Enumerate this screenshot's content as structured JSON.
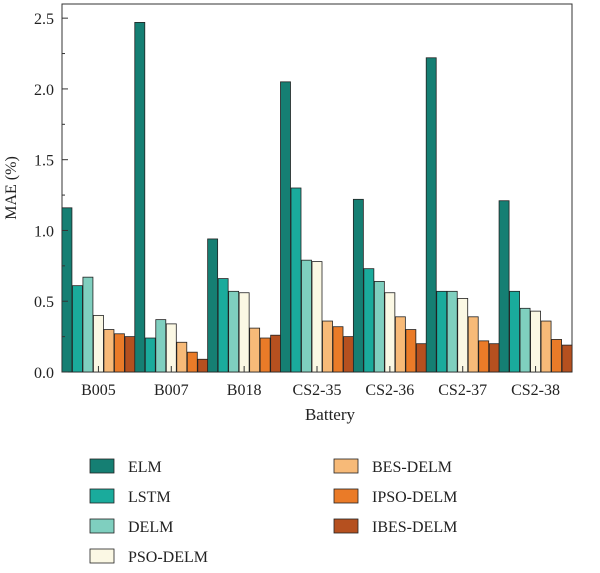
{
  "chart_data": {
    "type": "bar",
    "title": "",
    "xlabel": "Battery",
    "ylabel": "MAE (%)",
    "ylim": [
      0,
      2.6
    ],
    "yticks": [
      "0.0",
      "0.5",
      "1.0",
      "1.5",
      "2.0",
      "2.5"
    ],
    "categories": [
      "B005",
      "B007",
      "B018",
      "CS2-35",
      "CS2-36",
      "CS2-37",
      "CS2-38"
    ],
    "legend_position": "bottom",
    "series": [
      {
        "name": "ELM",
        "color": "#157f73",
        "values": [
          1.16,
          2.47,
          0.94,
          2.05,
          1.22,
          2.22,
          1.21
        ]
      },
      {
        "name": "LSTM",
        "color": "#1aab9c",
        "values": [
          0.61,
          0.24,
          0.66,
          1.3,
          0.73,
          0.57,
          0.57
        ]
      },
      {
        "name": "DELM",
        "color": "#7fcfbf",
        "values": [
          0.67,
          0.37,
          0.57,
          0.79,
          0.64,
          0.57,
          0.45
        ]
      },
      {
        "name": "PSO-DELM",
        "color": "#fbf8e4",
        "values": [
          0.4,
          0.34,
          0.56,
          0.78,
          0.56,
          0.52,
          0.43
        ]
      },
      {
        "name": "BES-DELM",
        "color": "#f7ba78",
        "values": [
          0.3,
          0.21,
          0.31,
          0.36,
          0.39,
          0.39,
          0.36
        ]
      },
      {
        "name": "IPSO-DELM",
        "color": "#ea7b28",
        "values": [
          0.27,
          0.14,
          0.24,
          0.32,
          0.3,
          0.22,
          0.23
        ]
      },
      {
        "name": "IBES-DELM",
        "color": "#b5501f",
        "values": [
          0.25,
          0.09,
          0.26,
          0.25,
          0.2,
          0.2,
          0.19
        ]
      }
    ]
  }
}
